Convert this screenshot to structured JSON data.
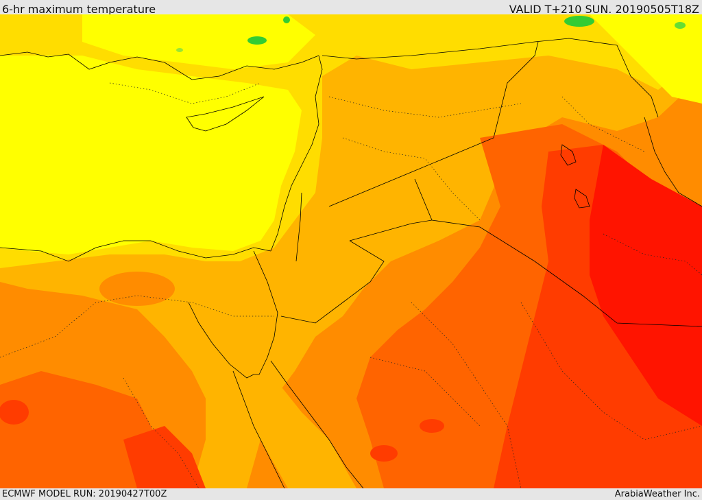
{
  "header": {
    "title": "6-hr maximum temperature",
    "valid_time": "VALID T+210 SUN. 20190505T18Z"
  },
  "footer": {
    "model_run": "ECMWF MODEL RUN: 20190427T00Z",
    "credit": "ArabiaWeather Inc."
  },
  "map": {
    "variable": "6-hr maximum temperature",
    "colors": {
      "cool_green": "#33cc33",
      "light_green": "#99e633",
      "pale_yellow": "#ffff00",
      "yellow": "#ffdd00",
      "amber": "#ffb400",
      "orange": "#ff8c00",
      "dark_orange": "#ff6400",
      "red_orange": "#ff3c00",
      "red": "#ff1400",
      "coastline": "#000000"
    }
  }
}
